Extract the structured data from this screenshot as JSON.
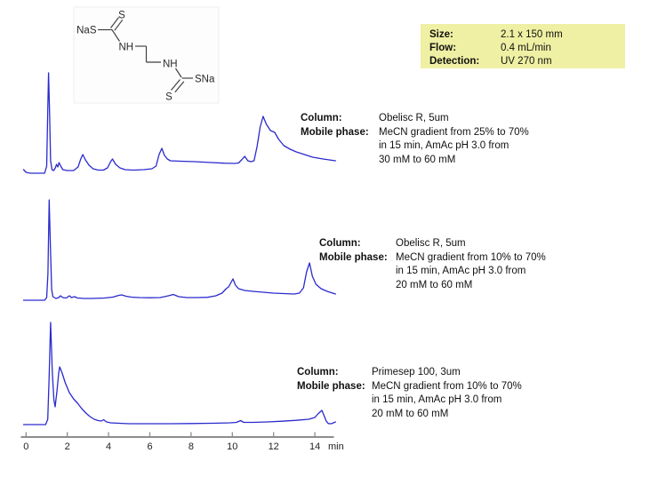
{
  "conditions": {
    "rows": [
      {
        "label": "Size:",
        "value": "2.1 x 150 mm"
      },
      {
        "label": "Flow:",
        "value": "0.4 mL/min"
      },
      {
        "label": "Detection:",
        "value": "UV 270 nm"
      }
    ]
  },
  "structure": {
    "name": "disodium ethylenebis(dithiocarbamate)",
    "labels": [
      "S",
      "NaS",
      "NH",
      "NH",
      "SNa",
      "S"
    ]
  },
  "panels": [
    {
      "column_label": "Column:",
      "column_value": "Obelisc R, 5um",
      "mobile_label": "Mobile phase:",
      "mobile_lines": [
        "MeCN gradient from 25% to 70%",
        "in 15 min, AmAc pH 3.0 from",
        "30 mM to 60 mM"
      ]
    },
    {
      "column_label": "Column:",
      "column_value": "Obelisc R, 5um",
      "mobile_label": "Mobile phase:",
      "mobile_lines": [
        "MeCN gradient from 10% to 70%",
        "in 15 min, AmAc pH 3.0 from",
        "20 mM to 60 mM"
      ]
    },
    {
      "column_label": "Column:",
      "column_value": "Primesep 100, 3um",
      "mobile_label": "Mobile phase:",
      "mobile_lines": [
        "MeCN gradient from 10% to 70%",
        "in 15 min, AmAc pH 3.0 from",
        "20 mM to 60 mM"
      ]
    }
  ],
  "chart_data": {
    "type": "line",
    "x_unit": "min",
    "x_axis_label": "min",
    "x_ticks": [
      0,
      2,
      4,
      6,
      8,
      10,
      12,
      14
    ],
    "x_range": [
      0,
      15
    ],
    "y_unit": "relative intensity (arbitrary units)",
    "trace_color": "#2a2ace",
    "axis_color": "#8c8c8c",
    "traces": [
      {
        "name": "Obelisc R 5um, MeCN 25-70%, AmAc 30-60 mM",
        "points": [
          [
            -0.12,
            4
          ],
          [
            0.0,
            1
          ],
          [
            0.2,
            0
          ],
          [
            0.9,
            0
          ],
          [
            1.0,
            8
          ],
          [
            1.05,
            70
          ],
          [
            1.09,
            113
          ],
          [
            1.14,
            70
          ],
          [
            1.19,
            14
          ],
          [
            1.26,
            4
          ],
          [
            1.34,
            3
          ],
          [
            1.42,
            6
          ],
          [
            1.48,
            10
          ],
          [
            1.54,
            7
          ],
          [
            1.6,
            12
          ],
          [
            1.68,
            8
          ],
          [
            1.78,
            4
          ],
          [
            2.0,
            3
          ],
          [
            2.3,
            3
          ],
          [
            2.52,
            7
          ],
          [
            2.65,
            16
          ],
          [
            2.75,
            21
          ],
          [
            2.88,
            15
          ],
          [
            3.05,
            9
          ],
          [
            3.25,
            5
          ],
          [
            3.5,
            3.5
          ],
          [
            3.75,
            3.5
          ],
          [
            3.95,
            6
          ],
          [
            4.1,
            13
          ],
          [
            4.19,
            16
          ],
          [
            4.34,
            10
          ],
          [
            4.55,
            6
          ],
          [
            4.8,
            4
          ],
          [
            5.2,
            3.5
          ],
          [
            5.7,
            4
          ],
          [
            6.1,
            5
          ],
          [
            6.3,
            8
          ],
          [
            6.45,
            21
          ],
          [
            6.58,
            28
          ],
          [
            6.71,
            20
          ],
          [
            6.85,
            16
          ],
          [
            7.0,
            14
          ],
          [
            7.5,
            13.5
          ],
          [
            8.2,
            13
          ],
          [
            9.0,
            12
          ],
          [
            9.6,
            11.3
          ],
          [
            10.1,
            11
          ],
          [
            10.3,
            11.5
          ],
          [
            10.45,
            15
          ],
          [
            10.6,
            19
          ],
          [
            10.75,
            14
          ],
          [
            10.9,
            13
          ],
          [
            11.05,
            14
          ],
          [
            11.2,
            30
          ],
          [
            11.35,
            52
          ],
          [
            11.49,
            64
          ],
          [
            11.65,
            55
          ],
          [
            11.85,
            48
          ],
          [
            12.05,
            46
          ],
          [
            12.25,
            38
          ],
          [
            12.5,
            31
          ],
          [
            12.8,
            27
          ],
          [
            13.1,
            24
          ],
          [
            13.5,
            21
          ],
          [
            13.9,
            18
          ],
          [
            14.4,
            16
          ],
          [
            15.0,
            14
          ]
        ]
      },
      {
        "name": "Obelisc R 5um, MeCN 10-70%, AmAc 20-60 mM",
        "points": [
          [
            -0.12,
            0
          ],
          [
            0.9,
            0
          ],
          [
            1.0,
            3
          ],
          [
            1.06,
            30
          ],
          [
            1.12,
            113
          ],
          [
            1.18,
            60
          ],
          [
            1.24,
            12
          ],
          [
            1.3,
            4
          ],
          [
            1.45,
            2
          ],
          [
            1.58,
            3
          ],
          [
            1.67,
            5
          ],
          [
            1.78,
            3
          ],
          [
            1.95,
            2.5
          ],
          [
            2.1,
            5
          ],
          [
            2.2,
            3
          ],
          [
            2.35,
            4
          ],
          [
            2.5,
            2.5
          ],
          [
            2.8,
            2
          ],
          [
            3.2,
            2
          ],
          [
            3.8,
            2.5
          ],
          [
            4.2,
            3.5
          ],
          [
            4.5,
            5.5
          ],
          [
            4.64,
            6
          ],
          [
            4.85,
            4.5
          ],
          [
            5.1,
            3.5
          ],
          [
            5.5,
            3
          ],
          [
            6.0,
            2.8
          ],
          [
            6.5,
            3
          ],
          [
            6.9,
            5
          ],
          [
            7.14,
            6.5
          ],
          [
            7.4,
            4
          ],
          [
            7.8,
            3
          ],
          [
            8.3,
            3
          ],
          [
            8.8,
            3.3
          ],
          [
            9.2,
            5
          ],
          [
            9.5,
            8
          ],
          [
            9.7,
            13
          ],
          [
            9.82,
            15
          ],
          [
            10.03,
            24
          ],
          [
            10.15,
            17
          ],
          [
            10.3,
            13
          ],
          [
            10.6,
            11
          ],
          [
            11.0,
            10
          ],
          [
            11.5,
            9
          ],
          [
            12.0,
            8
          ],
          [
            12.5,
            7.5
          ],
          [
            13.0,
            7
          ],
          [
            13.25,
            8
          ],
          [
            13.45,
            14
          ],
          [
            13.6,
            32
          ],
          [
            13.74,
            42
          ],
          [
            13.88,
            27
          ],
          [
            14.05,
            18
          ],
          [
            14.3,
            13
          ],
          [
            14.6,
            10
          ],
          [
            15.0,
            7
          ]
        ]
      },
      {
        "name": "Primesep 100 3um, MeCN 10-70%, AmAc 20-60 mM",
        "points": [
          [
            -0.12,
            0
          ],
          [
            0.95,
            0
          ],
          [
            1.05,
            6
          ],
          [
            1.12,
            55
          ],
          [
            1.19,
            115
          ],
          [
            1.27,
            60
          ],
          [
            1.35,
            28
          ],
          [
            1.41,
            20
          ],
          [
            1.5,
            38
          ],
          [
            1.58,
            58
          ],
          [
            1.63,
            65
          ],
          [
            1.75,
            58
          ],
          [
            1.9,
            47
          ],
          [
            2.1,
            36
          ],
          [
            2.3,
            29
          ],
          [
            2.5,
            24
          ],
          [
            2.7,
            18
          ],
          [
            2.9,
            13
          ],
          [
            3.1,
            9
          ],
          [
            3.3,
            6
          ],
          [
            3.5,
            4.5
          ],
          [
            3.65,
            4
          ],
          [
            3.76,
            5.5
          ],
          [
            3.9,
            3
          ],
          [
            4.1,
            2
          ],
          [
            4.5,
            1.5
          ],
          [
            5.0,
            1
          ],
          [
            6.0,
            1
          ],
          [
            7.0,
            1
          ],
          [
            8.0,
            1.2
          ],
          [
            9.0,
            1.5
          ],
          [
            9.9,
            2
          ],
          [
            10.2,
            2.5
          ],
          [
            10.4,
            4.5
          ],
          [
            10.55,
            2.5
          ],
          [
            11.0,
            2.5
          ],
          [
            11.7,
            3
          ],
          [
            12.4,
            3.8
          ],
          [
            13.1,
            4.8
          ],
          [
            13.7,
            6
          ],
          [
            14.0,
            8
          ],
          [
            14.15,
            12
          ],
          [
            14.34,
            16
          ],
          [
            14.45,
            10
          ],
          [
            14.55,
            4
          ],
          [
            14.65,
            1.2
          ],
          [
            14.8,
            1
          ],
          [
            14.9,
            2
          ],
          [
            15.0,
            3
          ]
        ]
      }
    ]
  }
}
